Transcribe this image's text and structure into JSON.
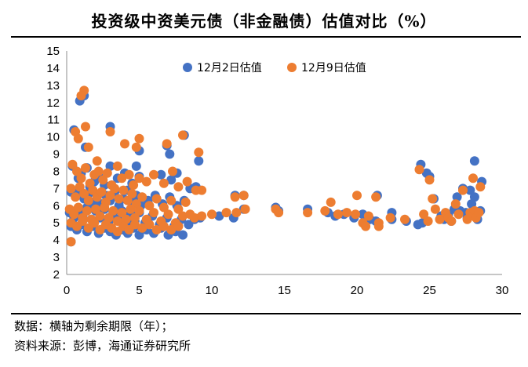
{
  "title": "投资级中资美元债（非金融债）估值对比（%）",
  "footer": {
    "note": "数据：横轴为剩余期限（年）；",
    "source": "资料来源：彭博，海通证券研究所"
  },
  "chart_data": {
    "type": "scatter",
    "title": "投资级中资美元债（非金融债）估值对比（%）",
    "xlabel": "",
    "ylabel": "",
    "xlim": [
      0,
      30
    ],
    "ylim": [
      2,
      15
    ],
    "xticks": [
      0,
      5,
      10,
      15,
      20,
      25,
      30
    ],
    "yticks": [
      2,
      3,
      4,
      5,
      6,
      7,
      8,
      9,
      10,
      11,
      12,
      13,
      14,
      15
    ],
    "grid": false,
    "legend_position": "top",
    "colors": {
      "dec2": "#4472c4",
      "dec9": "#ed7d31"
    },
    "series": [
      {
        "name": "12月2日估值",
        "points": [
          [
            0.9,
            12.1
          ],
          [
            1.2,
            12.4
          ],
          [
            0.5,
            10.4
          ],
          [
            1.3,
            9.4
          ],
          [
            3.0,
            10.6
          ],
          [
            5.0,
            9.2
          ],
          [
            6.9,
            9.5
          ],
          [
            7.1,
            9.0
          ],
          [
            9.1,
            8.6
          ],
          [
            8.1,
            10.1
          ],
          [
            0.4,
            8.3
          ],
          [
            0.8,
            7.6
          ],
          [
            1.0,
            7.9
          ],
          [
            1.4,
            8.2
          ],
          [
            1.6,
            7.1
          ],
          [
            1.9,
            7.4
          ],
          [
            2.2,
            7.7
          ],
          [
            2.6,
            7.2
          ],
          [
            3.0,
            8.3
          ],
          [
            3.5,
            7.6
          ],
          [
            4.0,
            7.9
          ],
          [
            4.5,
            7.3
          ],
          [
            4.8,
            8.3
          ],
          [
            5.0,
            7.7
          ],
          [
            6.5,
            7.8
          ],
          [
            7.2,
            7.5
          ],
          [
            7.6,
            7.9
          ],
          [
            8.5,
            7.0
          ],
          [
            8.9,
            7.1
          ],
          [
            0.3,
            6.8
          ],
          [
            0.6,
            6.6
          ],
          [
            0.9,
            6.9
          ],
          [
            1.2,
            6.4
          ],
          [
            1.5,
            6.7
          ],
          [
            1.8,
            6.2
          ],
          [
            2.1,
            6.5
          ],
          [
            2.4,
            6.1
          ],
          [
            2.7,
            6.6
          ],
          [
            3.0,
            6.3
          ],
          [
            3.3,
            6.8
          ],
          [
            3.6,
            6.0
          ],
          [
            3.9,
            6.4
          ],
          [
            4.2,
            6.9
          ],
          [
            4.5,
            6.2
          ],
          [
            4.8,
            6.6
          ],
          [
            5.1,
            6.0
          ],
          [
            5.6,
            6.3
          ],
          [
            6.1,
            6.6
          ],
          [
            6.6,
            6.1
          ],
          [
            7.1,
            6.5
          ],
          [
            7.6,
            6.0
          ],
          [
            8.1,
            6.3
          ],
          [
            0.2,
            5.6
          ],
          [
            0.5,
            5.3
          ],
          [
            0.8,
            5.8
          ],
          [
            1.1,
            5.4
          ],
          [
            1.4,
            5.9
          ],
          [
            1.7,
            5.2
          ],
          [
            2.0,
            5.7
          ],
          [
            2.3,
            5.3
          ],
          [
            2.6,
            5.8
          ],
          [
            2.9,
            5.1
          ],
          [
            3.2,
            5.6
          ],
          [
            3.5,
            5.2
          ],
          [
            3.8,
            5.7
          ],
          [
            4.1,
            5.0
          ],
          [
            4.4,
            5.5
          ],
          [
            4.7,
            5.1
          ],
          [
            5.0,
            5.6
          ],
          [
            5.4,
            5.0
          ],
          [
            5.9,
            5.4
          ],
          [
            6.4,
            4.9
          ],
          [
            6.9,
            5.3
          ],
          [
            7.4,
            4.8
          ],
          [
            7.9,
            5.2
          ],
          [
            8.4,
            4.9
          ],
          [
            0.3,
            4.8
          ],
          [
            0.7,
            4.6
          ],
          [
            1.0,
            4.9
          ],
          [
            1.4,
            4.5
          ],
          [
            1.8,
            4.8
          ],
          [
            2.2,
            4.4
          ],
          [
            2.6,
            4.7
          ],
          [
            3.0,
            4.5
          ],
          [
            3.4,
            4.3
          ],
          [
            3.8,
            4.6
          ],
          [
            4.2,
            4.4
          ],
          [
            4.6,
            4.7
          ],
          [
            5.0,
            4.3
          ],
          [
            5.5,
            4.6
          ],
          [
            6.0,
            4.4
          ],
          [
            6.5,
            4.7
          ],
          [
            7.0,
            4.3
          ],
          [
            7.5,
            4.5
          ],
          [
            8.0,
            4.3
          ],
          [
            0.3,
            3.9
          ],
          [
            8.8,
            5.2
          ],
          [
            9.2,
            5.3
          ],
          [
            10.5,
            5.4
          ],
          [
            11.5,
            5.3
          ],
          [
            11.6,
            6.6
          ],
          [
            12.2,
            6.6
          ],
          [
            12.2,
            5.8
          ],
          [
            14.4,
            5.9
          ],
          [
            14.6,
            5.7
          ],
          [
            16.6,
            5.8
          ],
          [
            18.0,
            5.6
          ],
          [
            18.5,
            5.4
          ],
          [
            19.1,
            5.5
          ],
          [
            19.8,
            5.3
          ],
          [
            20.4,
            5.5
          ],
          [
            20.9,
            5.2
          ],
          [
            21.3,
            5.1
          ],
          [
            21.4,
            6.6
          ],
          [
            22.4,
            5.6
          ],
          [
            22.4,
            5.2
          ],
          [
            23.4,
            5.1
          ],
          [
            24.2,
            4.9
          ],
          [
            24.4,
            8.4
          ],
          [
            24.5,
            5.0
          ],
          [
            24.8,
            7.9
          ],
          [
            25.0,
            7.7
          ],
          [
            25.3,
            6.4
          ],
          [
            25.8,
            5.4
          ],
          [
            26.0,
            5.2
          ],
          [
            26.3,
            5.5
          ],
          [
            26.5,
            5.1
          ],
          [
            26.7,
            5.8
          ],
          [
            26.9,
            6.5
          ],
          [
            27.1,
            5.7
          ],
          [
            27.3,
            7.0
          ],
          [
            27.5,
            5.6
          ],
          [
            27.6,
            5.3
          ],
          [
            27.8,
            6.9
          ],
          [
            27.9,
            6.1
          ],
          [
            28.1,
            6.5
          ],
          [
            28.1,
            8.6
          ],
          [
            28.3,
            5.2
          ],
          [
            28.5,
            5.7
          ],
          [
            28.6,
            7.4
          ]
        ]
      },
      {
        "name": "12月9日估值",
        "points": [
          [
            1.2,
            12.7
          ],
          [
            1.0,
            12.4
          ],
          [
            0.6,
            10.3
          ],
          [
            0.8,
            9.9
          ],
          [
            1.3,
            10.6
          ],
          [
            1.5,
            9.4
          ],
          [
            2.1,
            8.6
          ],
          [
            3.0,
            10.3
          ],
          [
            4.0,
            9.6
          ],
          [
            4.8,
            9.4
          ],
          [
            5.0,
            9.9
          ],
          [
            6.9,
            9.6
          ],
          [
            8.0,
            10.1
          ],
          [
            9.1,
            9.1
          ],
          [
            0.4,
            8.4
          ],
          [
            0.7,
            8.0
          ],
          [
            1.0,
            7.6
          ],
          [
            1.3,
            8.2
          ],
          [
            1.6,
            7.3
          ],
          [
            1.9,
            7.8
          ],
          [
            2.2,
            8.0
          ],
          [
            2.5,
            7.5
          ],
          [
            2.8,
            7.9
          ],
          [
            3.1,
            7.2
          ],
          [
            3.5,
            8.3
          ],
          [
            3.8,
            7.6
          ],
          [
            4.3,
            7.8
          ],
          [
            4.6,
            7.2
          ],
          [
            5.0,
            7.6
          ],
          [
            5.5,
            7.4
          ],
          [
            6.0,
            7.8
          ],
          [
            6.7,
            7.3
          ],
          [
            7.3,
            8.0
          ],
          [
            7.7,
            7.1
          ],
          [
            8.3,
            7.4
          ],
          [
            8.9,
            6.9
          ],
          [
            0.3,
            7.0
          ],
          [
            0.6,
            6.5
          ],
          [
            0.9,
            7.1
          ],
          [
            1.2,
            6.7
          ],
          [
            1.5,
            6.3
          ],
          [
            1.8,
            6.9
          ],
          [
            2.1,
            6.5
          ],
          [
            2.4,
            6.8
          ],
          [
            2.7,
            6.2
          ],
          [
            3.0,
            6.6
          ],
          [
            3.3,
            7.0
          ],
          [
            3.6,
            6.4
          ],
          [
            3.9,
            6.9
          ],
          [
            4.2,
            6.3
          ],
          [
            4.5,
            6.7
          ],
          [
            4.8,
            6.1
          ],
          [
            5.2,
            6.5
          ],
          [
            5.7,
            6.0
          ],
          [
            6.2,
            6.4
          ],
          [
            6.7,
            5.9
          ],
          [
            7.2,
            6.3
          ],
          [
            7.7,
            5.8
          ],
          [
            8.2,
            6.2
          ],
          [
            9.3,
            6.9
          ],
          [
            0.2,
            5.8
          ],
          [
            0.5,
            5.5
          ],
          [
            0.8,
            5.9
          ],
          [
            1.1,
            5.3
          ],
          [
            1.4,
            5.7
          ],
          [
            1.7,
            5.2
          ],
          [
            2.0,
            5.8
          ],
          [
            2.3,
            5.4
          ],
          [
            2.6,
            5.9
          ],
          [
            2.9,
            5.3
          ],
          [
            3.2,
            5.7
          ],
          [
            3.5,
            5.1
          ],
          [
            3.8,
            5.6
          ],
          [
            4.1,
            5.2
          ],
          [
            4.4,
            5.8
          ],
          [
            4.7,
            5.3
          ],
          [
            5.0,
            5.7
          ],
          [
            5.5,
            5.2
          ],
          [
            6.0,
            5.6
          ],
          [
            6.5,
            5.1
          ],
          [
            7.0,
            5.5
          ],
          [
            7.5,
            5.0
          ],
          [
            8.0,
            5.4
          ],
          [
            8.5,
            5.5
          ],
          [
            0.3,
            5.0
          ],
          [
            0.7,
            4.8
          ],
          [
            1.1,
            5.1
          ],
          [
            1.5,
            4.7
          ],
          [
            1.9,
            5.0
          ],
          [
            2.3,
            4.6
          ],
          [
            2.7,
            4.9
          ],
          [
            3.1,
            4.7
          ],
          [
            3.5,
            4.5
          ],
          [
            3.9,
            4.8
          ],
          [
            4.3,
            4.6
          ],
          [
            4.7,
            4.9
          ],
          [
            5.2,
            4.7
          ],
          [
            5.7,
            4.9
          ],
          [
            6.2,
            4.6
          ],
          [
            6.7,
            4.8
          ],
          [
            7.2,
            4.6
          ],
          [
            7.7,
            4.8
          ],
          [
            0.3,
            3.9
          ],
          [
            8.8,
            5.3
          ],
          [
            9.3,
            5.4
          ],
          [
            10.0,
            5.5
          ],
          [
            11.0,
            5.6
          ],
          [
            11.6,
            6.5
          ],
          [
            11.7,
            5.6
          ],
          [
            12.2,
            6.6
          ],
          [
            12.3,
            5.8
          ],
          [
            14.4,
            5.8
          ],
          [
            14.6,
            5.6
          ],
          [
            16.6,
            5.6
          ],
          [
            17.8,
            5.7
          ],
          [
            18.2,
            6.2
          ],
          [
            18.7,
            5.5
          ],
          [
            19.3,
            5.6
          ],
          [
            19.9,
            5.5
          ],
          [
            20.0,
            6.6
          ],
          [
            20.4,
            5.0
          ],
          [
            20.6,
            4.8
          ],
          [
            20.8,
            5.4
          ],
          [
            21.3,
            6.5
          ],
          [
            21.5,
            5.0
          ],
          [
            21.5,
            4.8
          ],
          [
            22.3,
            5.3
          ],
          [
            23.3,
            5.2
          ],
          [
            24.3,
            8.1
          ],
          [
            24.6,
            5.5
          ],
          [
            24.9,
            5.1
          ],
          [
            25.0,
            7.5
          ],
          [
            25.2,
            6.4
          ],
          [
            25.4,
            5.8
          ],
          [
            25.7,
            5.2
          ],
          [
            26.1,
            5.6
          ],
          [
            26.3,
            5.3
          ],
          [
            26.5,
            5.1
          ],
          [
            26.8,
            6.1
          ],
          [
            27.0,
            5.5
          ],
          [
            27.3,
            6.9
          ],
          [
            27.6,
            5.2
          ],
          [
            27.8,
            5.6
          ],
          [
            28.0,
            7.6
          ],
          [
            28.1,
            5.7
          ],
          [
            28.2,
            5.3
          ],
          [
            28.4,
            5.6
          ],
          [
            28.5,
            7.1
          ]
        ]
      }
    ]
  }
}
